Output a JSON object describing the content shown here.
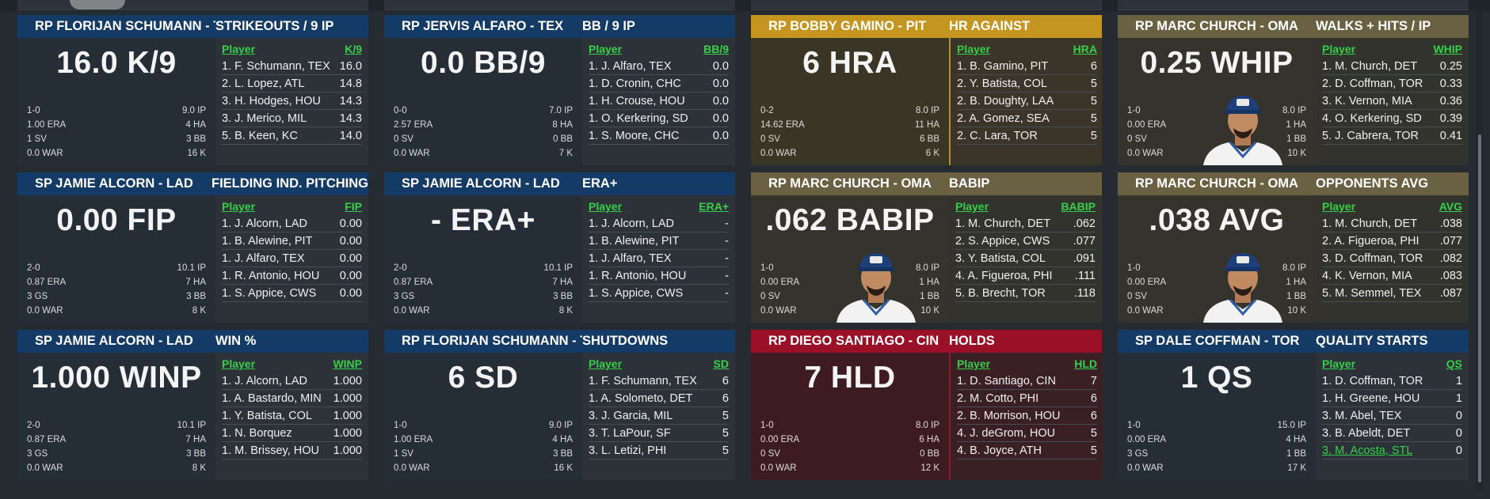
{
  "colors": {
    "blue": "#143a66",
    "gold": "#c6951f",
    "olive": "#6a6142",
    "red": "#9a1027",
    "list_header": "#35d04a"
  },
  "cards": [
    {
      "theme": "blue",
      "player": "RP FLORIJAN SCHUMANN - TEX",
      "stat": "STRIKEOUTS / 9 IP",
      "value": "16.0 K/9",
      "stats": [
        [
          "1-0",
          "9.0 IP"
        ],
        [
          "1.00 ERA",
          "4 HA"
        ],
        [
          "1 SV",
          "3 BB"
        ],
        [
          "0.0 WAR",
          "16 K"
        ]
      ],
      "list_header": [
        "Player",
        "K/9"
      ],
      "avatar": false,
      "list": [
        [
          "1. F. Schumann, TEX",
          "16.0"
        ],
        [
          "2. L. Lopez, ATL",
          "14.8"
        ],
        [
          "3. H. Hodges, HOU",
          "14.3"
        ],
        [
          "3. J. Merico, MIL",
          "14.3"
        ],
        [
          "5. B. Keen, KC",
          "14.0"
        ]
      ]
    },
    {
      "theme": "blue",
      "player": "RP JERVIS ALFARO - TEX",
      "stat": "BB / 9 IP",
      "value": "0.0 BB/9",
      "stats": [
        [
          "0-0",
          "7.0 IP"
        ],
        [
          "2.57 ERA",
          "8 HA"
        ],
        [
          "0 SV",
          "0 BB"
        ],
        [
          "0.0 WAR",
          "7 K"
        ]
      ],
      "list_header": [
        "Player",
        "BB/9"
      ],
      "avatar": false,
      "list": [
        [
          "1. J. Alfaro, TEX",
          "0.0"
        ],
        [
          "1. D. Cronin, CHC",
          "0.0"
        ],
        [
          "1. H. Crouse, HOU",
          "0.0"
        ],
        [
          "1. O. Kerkering, SD",
          "0.0"
        ],
        [
          "1. S. Moore, CHC",
          "0.0"
        ]
      ]
    },
    {
      "theme": "gold",
      "player": "RP BOBBY GAMINO - PIT",
      "stat": "HR AGAINST",
      "value": "6 HRA",
      "stats": [
        [
          "0-2",
          "8.0 IP"
        ],
        [
          "14.62 ERA",
          "11 HA"
        ],
        [
          "0 SV",
          "6 BB"
        ],
        [
          "0.0 WAR",
          "6 K"
        ]
      ],
      "list_header": [
        "Player",
        "HRA"
      ],
      "avatar": false,
      "list": [
        [
          "1. B. Gamino, PIT",
          "6"
        ],
        [
          "2. Y. Batista, COL",
          "5"
        ],
        [
          "2. B. Doughty, LAA",
          "5"
        ],
        [
          "2. A. Gomez, SEA",
          "5"
        ],
        [
          "2. C. Lara, TOR",
          "5"
        ]
      ]
    },
    {
      "theme": "olive",
      "player": "RP MARC CHURCH - OMA",
      "stat": "WALKS + HITS / IP",
      "value": "0.25 WHIP",
      "stats": [
        [
          "1-0",
          "8.0 IP"
        ],
        [
          "0.00 ERA",
          "1 HA"
        ],
        [
          "0 SV",
          "1 BB"
        ],
        [
          "0.0 WAR",
          "10 K"
        ]
      ],
      "list_header": [
        "Player",
        "WHIP"
      ],
      "avatar": true,
      "list": [
        [
          "1. M. Church, DET",
          "0.25"
        ],
        [
          "2. D. Coffman, TOR",
          "0.33"
        ],
        [
          "3. K. Vernon, MIA",
          "0.36"
        ],
        [
          "4. O. Kerkering, SD",
          "0.39"
        ],
        [
          "5. J. Cabrera, TOR",
          "0.41"
        ]
      ]
    },
    {
      "theme": "blue",
      "player": "SP JAMIE ALCORN - LAD",
      "stat": "FIELDING IND. PITCHING",
      "value": "0.00 FIP",
      "stats": [
        [
          "2-0",
          "10.1 IP"
        ],
        [
          "0.87 ERA",
          "7 HA"
        ],
        [
          "3 GS",
          "3 BB"
        ],
        [
          "0.0 WAR",
          "8 K"
        ]
      ],
      "list_header": [
        "Player",
        "FIP"
      ],
      "avatar": false,
      "list": [
        [
          "1. J. Alcorn, LAD",
          "0.00"
        ],
        [
          "1. B. Alewine, PIT",
          "0.00"
        ],
        [
          "1. J. Alfaro, TEX",
          "0.00"
        ],
        [
          "1. R. Antonio, HOU",
          "0.00"
        ],
        [
          "1. S. Appice, CWS",
          "0.00"
        ]
      ]
    },
    {
      "theme": "blue",
      "player": "SP JAMIE ALCORN - LAD",
      "stat": "ERA+",
      "value": "- ERA+",
      "stats": [
        [
          "2-0",
          "10.1 IP"
        ],
        [
          "0.87 ERA",
          "7 HA"
        ],
        [
          "3 GS",
          "3 BB"
        ],
        [
          "0.0 WAR",
          "8 K"
        ]
      ],
      "list_header": [
        "Player",
        "ERA+"
      ],
      "avatar": false,
      "list": [
        [
          "1. J. Alcorn, LAD",
          "-"
        ],
        [
          "1. B. Alewine, PIT",
          "-"
        ],
        [
          "1. J. Alfaro, TEX",
          "-"
        ],
        [
          "1. R. Antonio, HOU",
          "-"
        ],
        [
          "1. S. Appice, CWS",
          "-"
        ]
      ]
    },
    {
      "theme": "olive",
      "player": "RP MARC CHURCH - OMA",
      "stat": "BABIP",
      "value": ".062 BABIP",
      "stats": [
        [
          "1-0",
          "8.0 IP"
        ],
        [
          "0.00 ERA",
          "1 HA"
        ],
        [
          "0 SV",
          "1 BB"
        ],
        [
          "0.0 WAR",
          "10 K"
        ]
      ],
      "list_header": [
        "Player",
        "BABIP"
      ],
      "avatar": true,
      "list": [
        [
          "1. M. Church, DET",
          ".062"
        ],
        [
          "2. S. Appice, CWS",
          ".077"
        ],
        [
          "3. Y. Batista, COL",
          ".091"
        ],
        [
          "4. A. Figueroa, PHI",
          ".111"
        ],
        [
          "5. B. Brecht, TOR",
          ".118"
        ]
      ]
    },
    {
      "theme": "olive",
      "player": "RP MARC CHURCH - OMA",
      "stat": "OPPONENTS AVG",
      "value": ".038 AVG",
      "stats": [
        [
          "1-0",
          "8.0 IP"
        ],
        [
          "0.00 ERA",
          "1 HA"
        ],
        [
          "0 SV",
          "1 BB"
        ],
        [
          "0.0 WAR",
          "10 K"
        ]
      ],
      "list_header": [
        "Player",
        "AVG"
      ],
      "avatar": true,
      "list": [
        [
          "1. M. Church, DET",
          ".038"
        ],
        [
          "2. A. Figueroa, PHI",
          ".077"
        ],
        [
          "3. D. Coffman, TOR",
          ".082"
        ],
        [
          "4. K. Vernon, MIA",
          ".083"
        ],
        [
          "5. M. Semmel, TEX",
          ".087"
        ]
      ]
    },
    {
      "theme": "blue",
      "player": "SP JAMIE ALCORN - LAD",
      "stat": "WIN %",
      "value": "1.000 WINP",
      "stats": [
        [
          "2-0",
          "10.1 IP"
        ],
        [
          "0.87 ERA",
          "7 HA"
        ],
        [
          "3 GS",
          "3 BB"
        ],
        [
          "0.0 WAR",
          "8 K"
        ]
      ],
      "list_header": [
        "Player",
        "WINP"
      ],
      "avatar": false,
      "list": [
        [
          "1. J. Alcorn, LAD",
          "1.000"
        ],
        [
          "1. A. Bastardo, MIN",
          "1.000"
        ],
        [
          "1. Y. Batista, COL",
          "1.000"
        ],
        [
          "1. N. Borquez",
          "1.000"
        ],
        [
          "1. M. Brissey, HOU",
          "1.000"
        ]
      ]
    },
    {
      "theme": "blue",
      "player": "RP FLORIJAN SCHUMANN - TEX",
      "stat": "SHUTDOWNS",
      "value": "6 SD",
      "stats": [
        [
          "1-0",
          "9.0 IP"
        ],
        [
          "1.00 ERA",
          "4 HA"
        ],
        [
          "1 SV",
          "3 BB"
        ],
        [
          "0.0 WAR",
          "16 K"
        ]
      ],
      "list_header": [
        "Player",
        "SD"
      ],
      "avatar": false,
      "list": [
        [
          "1. F. Schumann, TEX",
          "6"
        ],
        [
          "1. A. Solometo, DET",
          "6"
        ],
        [
          "3. J. Garcia, MIL",
          "5"
        ],
        [
          "3. T. LaPour, SF",
          "5"
        ],
        [
          "3. L. Letizi, PHI",
          "5"
        ]
      ]
    },
    {
      "theme": "red",
      "player": "RP DIEGO SANTIAGO - CIN",
      "stat": "HOLDS",
      "value": "7 HLD",
      "stats": [
        [
          "1-0",
          "8.0 IP"
        ],
        [
          "0.00 ERA",
          "6 HA"
        ],
        [
          "0 SV",
          "0 BB"
        ],
        [
          "0.0 WAR",
          "12 K"
        ]
      ],
      "list_header": [
        "Player",
        "HLD"
      ],
      "avatar": false,
      "list": [
        [
          "1. D. Santiago, CIN",
          "7"
        ],
        [
          "2. M. Cotto, PHI",
          "6"
        ],
        [
          "2. B. Morrison, HOU",
          "6"
        ],
        [
          "4. J. deGrom, HOU",
          "5"
        ],
        [
          "4. B. Joyce, ATH",
          "5"
        ]
      ]
    },
    {
      "theme": "blue",
      "player": "SP DALE COFFMAN - TOR",
      "stat": "QUALITY STARTS",
      "value": "1 QS",
      "stats": [
        [
          "1-0",
          "15.0 IP"
        ],
        [
          "0.00 ERA",
          "4 HA"
        ],
        [
          "3 GS",
          "1 BB"
        ],
        [
          "0.0 WAR",
          "17 K"
        ]
      ],
      "list_header": [
        "Player",
        "QS"
      ],
      "avatar": false,
      "list": [
        [
          "1. D. Coffman, TOR",
          "1"
        ],
        [
          "1. H. Greene, HOU",
          "1"
        ],
        [
          "3. M. Abel, TEX",
          "0"
        ],
        [
          "3. B. Abeldt, DET",
          "0"
        ],
        [
          "3. M. Acosta, STL",
          "0"
        ]
      ]
    }
  ]
}
